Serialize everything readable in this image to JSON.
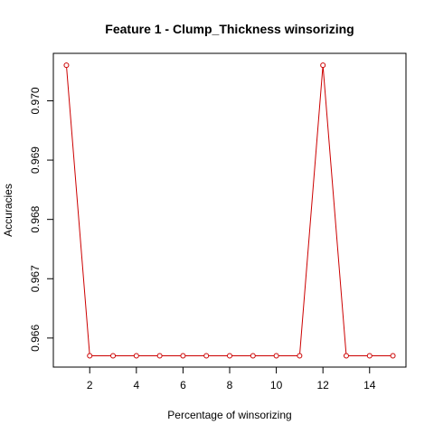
{
  "chart_data": {
    "type": "line",
    "title": "Feature 1 - Clump_Thickness winsorizing",
    "xlabel": "Percentage of winsorizing",
    "ylabel": "Accuracies",
    "x": [
      1,
      2,
      3,
      4,
      5,
      6,
      7,
      8,
      9,
      10,
      11,
      12,
      13,
      14,
      15
    ],
    "series": [
      {
        "values": [
          0.9706,
          0.9657,
          0.9657,
          0.9657,
          0.9657,
          0.9657,
          0.9657,
          0.9657,
          0.9657,
          0.9657,
          0.9657,
          0.9706,
          0.9657,
          0.9657,
          0.9657
        ]
      }
    ],
    "xlim": [
      0.44,
      15.56
    ],
    "ylim": [
      0.96551,
      0.9708
    ],
    "xticks": [
      2,
      4,
      6,
      8,
      10,
      12,
      14
    ],
    "xtick_labels": [
      "2",
      "4",
      "6",
      "8",
      "10",
      "12",
      "14"
    ],
    "yticks": [
      0.966,
      0.967,
      0.968,
      0.969,
      0.97
    ],
    "ytick_labels": [
      "0.966",
      "0.967",
      "0.968",
      "0.969",
      "0.970"
    ],
    "grid": false,
    "line_color": "#cc0000",
    "marker": "open-circle",
    "marker_color": "#cc0000"
  }
}
